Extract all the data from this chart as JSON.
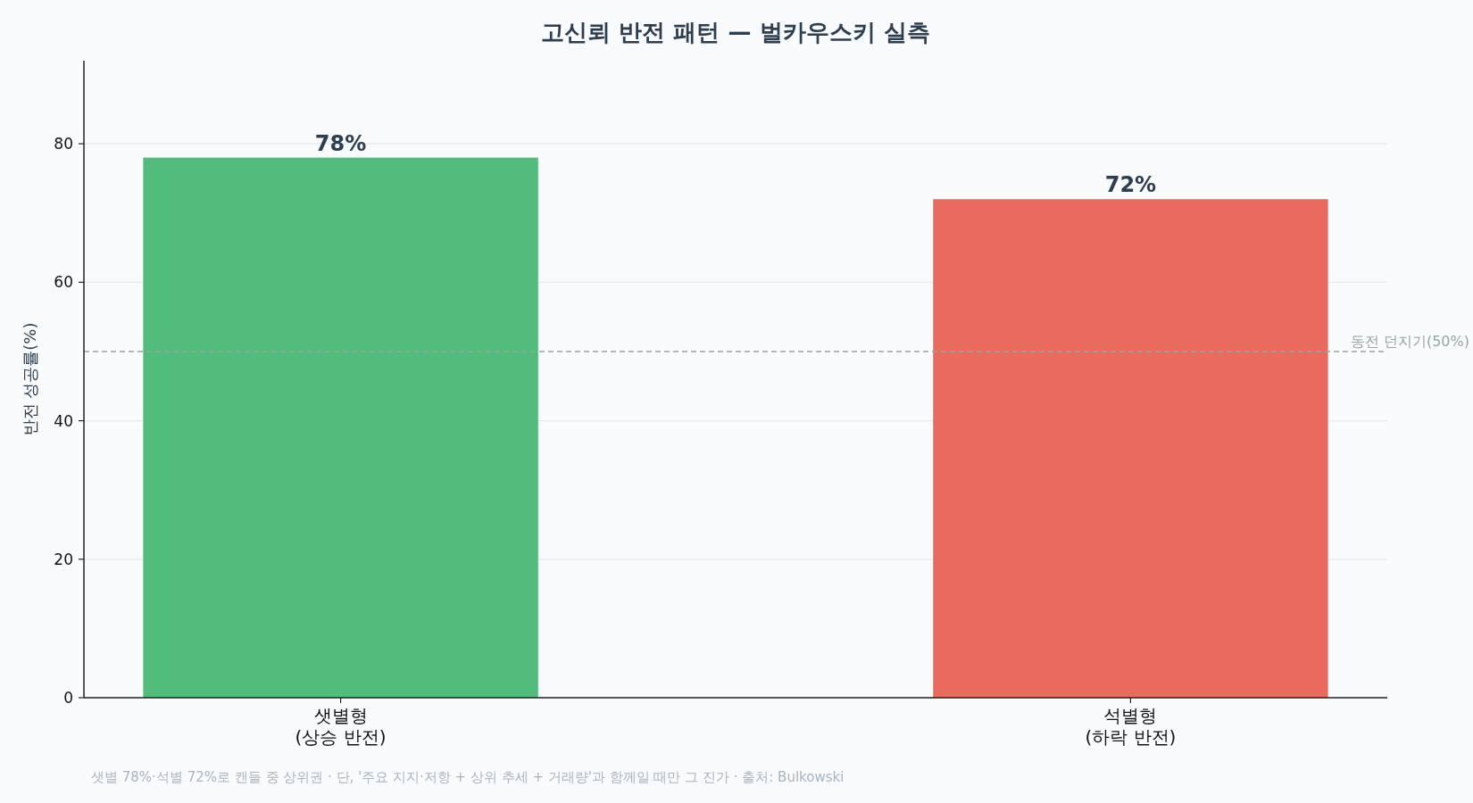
{
  "chart_data": {
    "type": "bar",
    "title": "고신뢰 반전 패턴 — 벌카우스키 실측",
    "ylabel": "반전 성공률(%)",
    "categories": [
      "샛별형\n(상승 반전)",
      "석별형\n(하락 반전)"
    ],
    "values": [
      78,
      72
    ],
    "colors": [
      "#52bc7c",
      "#e96b5e"
    ],
    "value_labels": [
      "78%",
      "72%"
    ],
    "ylim": [
      0,
      92
    ],
    "yticks": [
      0,
      20,
      40,
      60,
      80
    ],
    "grid": "y",
    "ref_lines": [
      {
        "axis": "y",
        "value": 50,
        "label": "동전 던지기(50%)",
        "color": "#95a5a6",
        "line_style": "dashed"
      }
    ],
    "annotations": [
      "샛별 78%·석별 72%로 캔들 중 상위권 · 단, '주요 지지·저항 + 상위 추세 + 거래량'과 함께일 때만 그 진가 · 출처: Bulkowski"
    ]
  }
}
